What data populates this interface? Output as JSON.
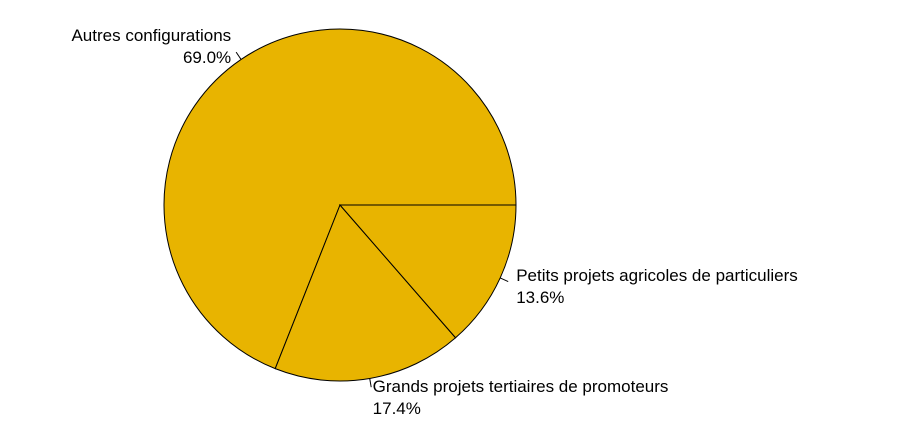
{
  "chart_data": {
    "type": "pie",
    "categories": [
      "Autres configurations",
      "Grands projets tertiaires de promoteurs",
      "Petits projets agricoles de particuliers"
    ],
    "values": [
      69.0,
      17.4,
      13.6
    ],
    "value_labels": [
      "69.0%",
      "17.4%",
      "13.6%"
    ],
    "color": "#e8b400"
  }
}
